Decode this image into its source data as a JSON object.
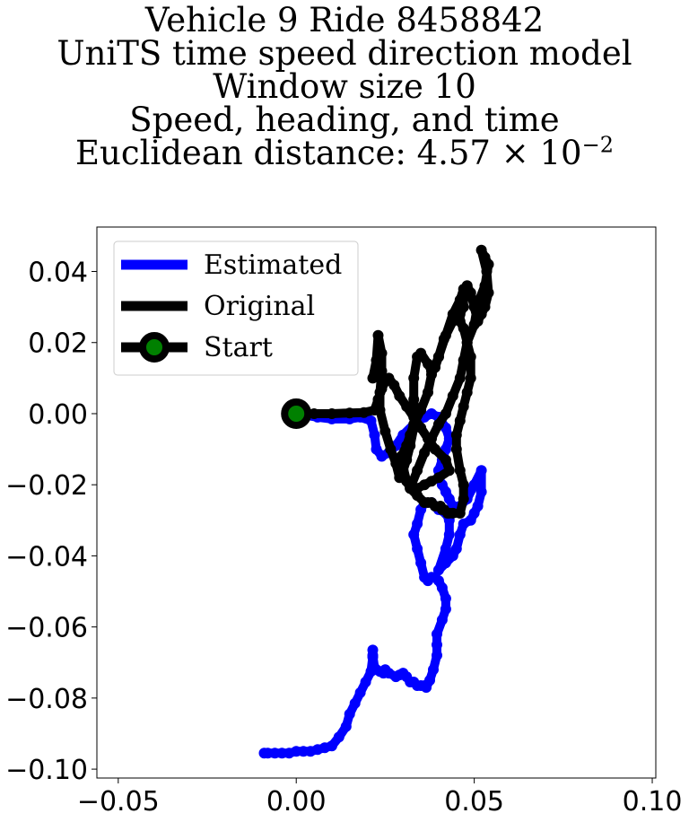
{
  "title": {
    "line1": "Vehicle 9 Ride 8458842",
    "line2": "UniTS time speed direction model",
    "line3": "Window size 10",
    "line4": "Speed, heading, and time",
    "line5_prefix": "Euclidean distance: 4.57 × 10",
    "line5_exponent": "−2"
  },
  "chart_data": {
    "type": "line",
    "xlim": [
      -0.056,
      0.101
    ],
    "ylim": [
      -0.1025,
      0.0525
    ],
    "xticks": [
      -0.05,
      0.0,
      0.05,
      0.1
    ],
    "xtick_labels": [
      "−0.05",
      "0.00",
      "0.05",
      "0.10"
    ],
    "yticks": [
      0.04,
      0.02,
      0.0,
      -0.02,
      -0.04,
      -0.06,
      -0.08,
      -0.1
    ],
    "ytick_labels": [
      "0.04",
      "0.02",
      "0.00",
      "−0.02",
      "−0.04",
      "−0.06",
      "−0.08",
      "−0.10"
    ],
    "grid": false,
    "legend_position": "top-left",
    "series": [
      {
        "name": "Estimated",
        "color": "#0000ff",
        "x": [
          0.0,
          0.003,
          0.006,
          0.01,
          0.015,
          0.018,
          0.021,
          0.022,
          0.0225,
          0.024,
          0.026,
          0.028,
          0.03,
          0.033,
          0.036,
          0.038,
          0.04,
          0.042,
          0.043,
          0.042,
          0.041,
          0.04,
          0.04,
          0.041,
          0.042,
          0.043,
          0.044,
          0.046,
          0.048,
          0.05,
          0.052,
          0.052,
          0.051,
          0.05,
          0.049,
          0.047,
          0.046,
          0.045,
          0.044,
          0.042,
          0.04,
          0.042,
          0.043,
          0.043,
          0.042,
          0.04,
          0.039,
          0.038,
          0.036,
          0.035,
          0.034,
          0.033,
          0.034,
          0.035,
          0.036,
          0.037,
          0.038,
          0.039,
          0.04,
          0.041,
          0.042,
          0.042,
          0.041,
          0.0395,
          0.0395,
          0.0395,
          0.0385,
          0.0375,
          0.0365,
          0.036,
          0.035,
          0.034,
          0.033,
          0.032,
          0.031,
          0.03,
          0.029,
          0.028,
          0.026,
          0.025,
          0.0245,
          0.0235,
          0.0225,
          0.022,
          0.0215,
          0.0215,
          0.0215,
          0.021,
          0.0195,
          0.018,
          0.0165,
          0.015,
          0.014,
          0.012,
          0.01,
          0.008,
          0.006,
          0.004,
          0.002,
          0.0,
          -0.002,
          -0.004,
          -0.006,
          -0.008,
          -0.009
        ],
        "y": [
          0.0,
          -0.0005,
          -0.001,
          -0.0015,
          -0.0015,
          -0.001,
          -0.002,
          -0.006,
          -0.01,
          -0.012,
          -0.011,
          -0.009,
          -0.006,
          -0.003,
          -0.001,
          0.0,
          -0.001,
          -0.004,
          -0.007,
          -0.01,
          -0.013,
          -0.016,
          -0.018,
          -0.02,
          -0.022,
          -0.024,
          -0.026,
          -0.026,
          -0.024,
          -0.02,
          -0.016,
          -0.022,
          -0.026,
          -0.028,
          -0.03,
          -0.031,
          -0.034,
          -0.038,
          -0.04,
          -0.042,
          -0.044,
          -0.038,
          -0.034,
          -0.03,
          -0.028,
          -0.027,
          -0.026,
          -0.025,
          -0.025,
          -0.027,
          -0.031,
          -0.034,
          -0.038,
          -0.042,
          -0.046,
          -0.047,
          -0.046,
          -0.046,
          -0.047,
          -0.049,
          -0.052,
          -0.055,
          -0.058,
          -0.062,
          -0.065,
          -0.068,
          -0.072,
          -0.075,
          -0.077,
          -0.0765,
          -0.0765,
          -0.0765,
          -0.0755,
          -0.0755,
          -0.074,
          -0.073,
          -0.0735,
          -0.074,
          -0.073,
          -0.072,
          -0.073,
          -0.0725,
          -0.072,
          -0.0715,
          -0.068,
          -0.0665,
          -0.0685,
          -0.0725,
          -0.0755,
          -0.0785,
          -0.0815,
          -0.0845,
          -0.088,
          -0.091,
          -0.0935,
          -0.094,
          -0.0945,
          -0.095,
          -0.095,
          -0.095,
          -0.0955,
          -0.0955,
          -0.0955,
          -0.0955,
          -0.0955
        ]
      },
      {
        "name": "Original",
        "color": "#000000",
        "x": [
          0.0,
          0.005,
          0.01,
          0.015,
          0.019,
          0.022,
          0.023,
          0.024,
          0.025,
          0.026,
          0.0275,
          0.029,
          0.031,
          0.033,
          0.035,
          0.037,
          0.039,
          0.042,
          0.043,
          0.04,
          0.038,
          0.036,
          0.034,
          0.032,
          0.034,
          0.036,
          0.038,
          0.04,
          0.042,
          0.044,
          0.046,
          0.047,
          0.048,
          0.05,
          0.051,
          0.053,
          0.054,
          0.053,
          0.052,
          0.0535,
          0.054,
          0.053,
          0.052,
          0.051,
          0.05,
          0.049,
          0.048,
          0.047,
          0.047,
          0.046,
          0.046,
          0.047,
          0.048,
          0.049,
          0.049,
          0.048,
          0.047,
          0.046,
          0.045,
          0.045,
          0.046,
          0.047,
          0.047,
          0.046,
          0.044,
          0.043,
          0.0425,
          0.0415,
          0.041,
          0.0405,
          0.039,
          0.038,
          0.037,
          0.036,
          0.034,
          0.032,
          0.031,
          0.03,
          0.0295,
          0.031,
          0.032,
          0.033,
          0.035,
          0.037,
          0.038,
          0.04,
          0.0415,
          0.044,
          0.046,
          0.0475,
          0.048,
          0.047,
          0.046,
          0.044,
          0.042,
          0.04,
          0.039,
          0.038,
          0.037,
          0.035,
          0.034,
          0.033,
          0.033,
          0.0335,
          0.033,
          0.032,
          0.031,
          0.03,
          0.029,
          0.028,
          0.0265,
          0.025,
          0.0235,
          0.0235,
          0.024,
          0.024,
          0.023,
          0.0225,
          0.0215
        ],
        "y": [
          0.0,
          0.0,
          0.0,
          0.0002,
          0.0003,
          0.001,
          0.004,
          0.007,
          0.009,
          0.01,
          0.008,
          0.005,
          0.002,
          -0.001,
          -0.004,
          -0.007,
          -0.01,
          -0.013,
          -0.016,
          -0.018,
          -0.019,
          -0.02,
          -0.021,
          -0.021,
          -0.016,
          -0.011,
          -0.007,
          -0.003,
          0.0,
          0.005,
          0.01,
          0.015,
          0.02,
          0.025,
          0.031,
          0.036,
          0.042,
          0.044,
          0.046,
          0.04,
          0.034,
          0.03,
          0.028,
          0.026,
          0.03,
          0.034,
          0.036,
          0.034,
          0.03,
          0.028,
          0.026,
          0.024,
          0.02,
          0.016,
          0.01,
          0.006,
          0.002,
          -0.002,
          -0.006,
          -0.01,
          -0.016,
          -0.02,
          -0.024,
          -0.028,
          -0.028,
          -0.028,
          -0.028,
          -0.027,
          -0.027,
          -0.026,
          -0.026,
          -0.025,
          -0.025,
          -0.025,
          -0.023,
          -0.021,
          -0.019,
          -0.015,
          -0.012,
          -0.009,
          -0.006,
          -0.003,
          0.001,
          0.006,
          0.011,
          0.016,
          0.021,
          0.026,
          0.031,
          0.034,
          0.036,
          0.035,
          0.032,
          0.028,
          0.022,
          0.016,
          0.013,
          0.012,
          0.014,
          0.017,
          0.016,
          0.01,
          0.004,
          -0.001,
          -0.004,
          -0.009,
          -0.013,
          -0.016,
          -0.018,
          -0.014,
          -0.01,
          -0.005,
          0.001,
          0.006,
          0.012,
          0.017,
          0.022,
          0.015,
          0.01
        ]
      },
      {
        "name": "Start",
        "color": "#000000",
        "marker_face": "#008000",
        "x": [
          0.0
        ],
        "y": [
          0.0
        ]
      }
    ]
  }
}
